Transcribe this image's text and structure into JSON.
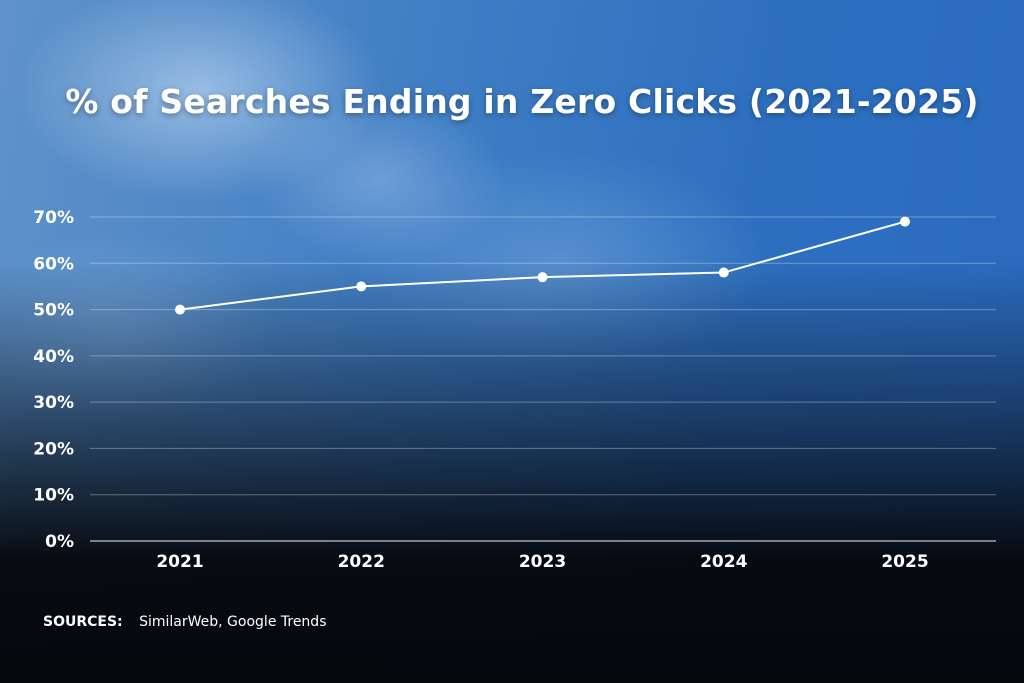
{
  "chart_data": {
    "type": "line",
    "title": "% of Searches Ending in Zero Clicks (2021-2025)",
    "categories": [
      "2021",
      "2022",
      "2023",
      "2024",
      "2025"
    ],
    "series": [
      {
        "values": [
          50,
          55,
          57,
          58,
          69
        ]
      }
    ],
    "y_ticks": [
      "0%",
      "10%",
      "20%",
      "30%",
      "40%",
      "50%",
      "60%",
      "70%"
    ],
    "ylim": [
      0,
      70
    ],
    "xlabel": "",
    "ylabel": "",
    "grid": true,
    "line_color": "#ffffff"
  },
  "sources": {
    "label": "SOURCES:",
    "text": "SimilarWeb, Google Trends"
  },
  "colors": {
    "background_top": "#3f7ec4",
    "background_bottom": "#05070b",
    "text": "#ffffff"
  }
}
